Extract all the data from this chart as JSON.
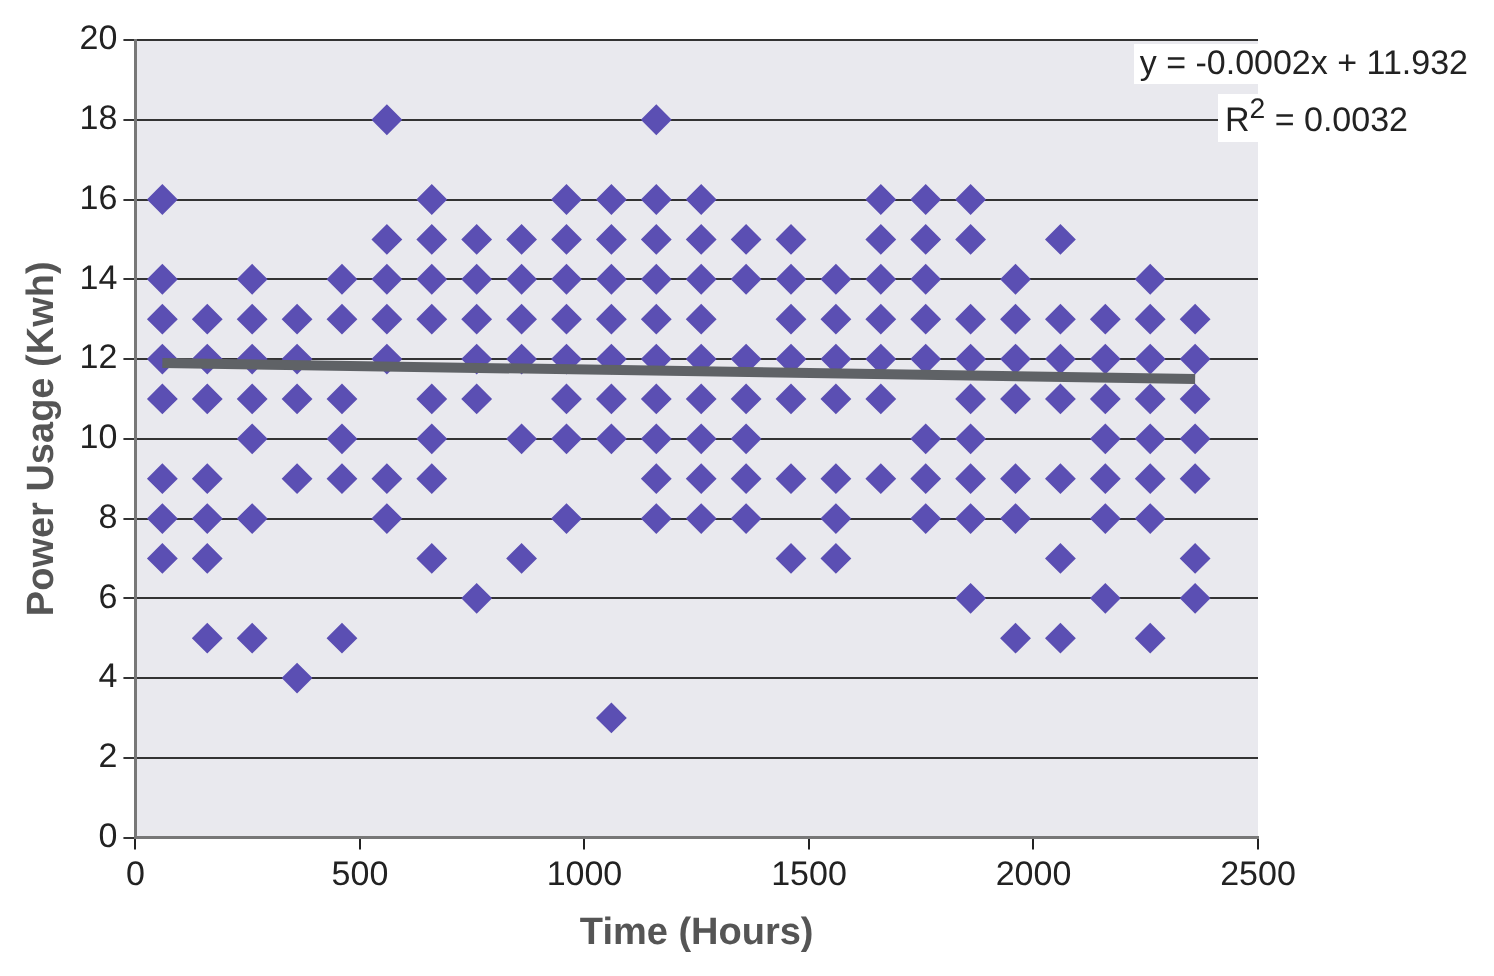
{
  "chart_data": {
    "type": "scatter",
    "xlabel": "Time (Hours)",
    "ylabel": "Power Usage (Kwh)",
    "xlim": [
      0,
      2500
    ],
    "xticks": [
      0,
      500,
      1000,
      1500,
      2000,
      2500
    ],
    "ylim": [
      0,
      20
    ],
    "yticks": [
      0,
      2,
      4,
      6,
      8,
      10,
      12,
      14,
      16,
      18,
      20
    ],
    "grid": "y",
    "legend": false,
    "annotations": [
      "y = -0.0002x + 11.932",
      "R$^{2}$ = 0.0032"
    ],
    "series": [
      {
        "type": "scatter",
        "color": "#5b4fb3",
        "marker": "diamond",
        "x": [
          60,
          60,
          60,
          60,
          60,
          60,
          60,
          60,
          160,
          160,
          160,
          160,
          160,
          160,
          160,
          260,
          260,
          260,
          260,
          260,
          260,
          260,
          360,
          360,
          360,
          360,
          360,
          460,
          460,
          460,
          460,
          460,
          460,
          560,
          560,
          560,
          560,
          560,
          560,
          560,
          660,
          660,
          660,
          660,
          660,
          660,
          660,
          660,
          760,
          760,
          760,
          760,
          760,
          760,
          860,
          860,
          860,
          860,
          860,
          860,
          960,
          960,
          960,
          960,
          960,
          960,
          960,
          960,
          1060,
          1060,
          1060,
          1060,
          1060,
          1060,
          1060,
          1060,
          1160,
          1160,
          1160,
          1160,
          1160,
          1160,
          1160,
          1160,
          1160,
          1160,
          1260,
          1260,
          1260,
          1260,
          1260,
          1260,
          1260,
          1260,
          1260,
          1360,
          1360,
          1360,
          1360,
          1360,
          1360,
          1360,
          1460,
          1460,
          1460,
          1460,
          1460,
          1460,
          1460,
          1560,
          1560,
          1560,
          1560,
          1560,
          1560,
          1560,
          1660,
          1660,
          1660,
          1660,
          1660,
          1660,
          1660,
          1760,
          1760,
          1760,
          1760,
          1760,
          1760,
          1760,
          1760,
          1860,
          1860,
          1860,
          1860,
          1860,
          1860,
          1860,
          1860,
          1860,
          1960,
          1960,
          1960,
          1960,
          1960,
          1960,
          1960,
          2060,
          2060,
          2060,
          2060,
          2060,
          2060,
          2060,
          2160,
          2160,
          2160,
          2160,
          2160,
          2160,
          2160,
          2260,
          2260,
          2260,
          2260,
          2260,
          2260,
          2260,
          2260,
          2360,
          2360,
          2360,
          2360,
          2360,
          2360,
          2360
        ],
        "values": [
          16,
          14,
          13,
          12,
          11,
          9,
          8,
          7,
          13,
          12,
          11,
          9,
          8,
          7,
          5,
          14,
          13,
          12,
          11,
          10,
          8,
          5,
          13,
          12,
          11,
          9,
          4,
          14,
          13,
          11,
          10,
          9,
          5,
          18,
          15,
          14,
          13,
          12,
          9,
          8,
          16,
          15,
          14,
          13,
          11,
          10,
          9,
          7,
          15,
          14,
          13,
          12,
          11,
          6,
          15,
          14,
          13,
          12,
          10,
          7,
          16,
          15,
          14,
          13,
          12,
          11,
          10,
          8,
          16,
          15,
          14,
          13,
          12,
          11,
          10,
          3,
          18,
          16,
          15,
          14,
          13,
          12,
          11,
          10,
          9,
          8,
          16,
          15,
          14,
          13,
          12,
          11,
          10,
          9,
          8,
          15,
          14,
          12,
          11,
          10,
          9,
          8,
          15,
          14,
          13,
          12,
          11,
          9,
          7,
          14,
          13,
          12,
          11,
          9,
          8,
          7,
          16,
          15,
          14,
          13,
          12,
          11,
          9,
          16,
          15,
          14,
          13,
          12,
          10,
          9,
          8,
          16,
          15,
          13,
          12,
          11,
          10,
          9,
          8,
          6,
          14,
          13,
          12,
          11,
          9,
          8,
          5,
          15,
          13,
          12,
          11,
          9,
          7,
          5,
          13,
          12,
          11,
          10,
          9,
          8,
          6,
          14,
          13,
          12,
          11,
          10,
          9,
          8,
          5,
          13,
          12,
          11,
          10,
          9,
          7,
          6
        ]
      },
      {
        "type": "line",
        "color": "#5f6266",
        "marker": "none",
        "x": [
          60,
          2360
        ],
        "values": [
          11.9,
          11.5
        ]
      }
    ]
  }
}
